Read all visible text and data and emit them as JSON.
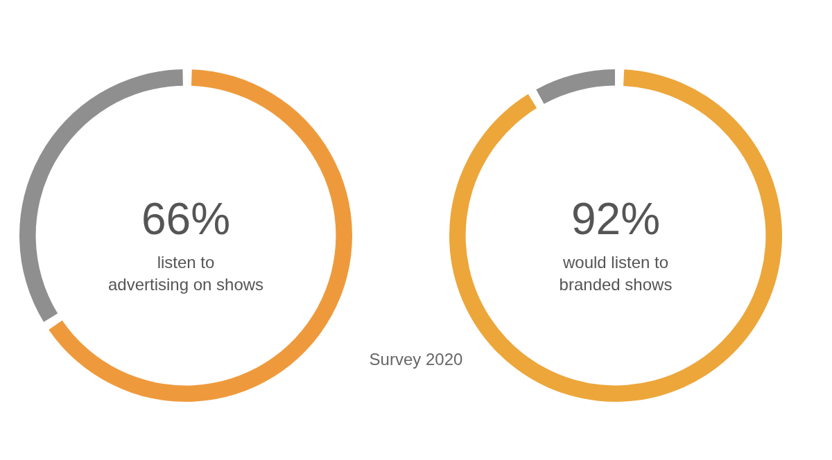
{
  "chart_data": [
    {
      "type": "donut",
      "categories": [
        null,
        null
      ],
      "values": [
        66,
        34
      ],
      "colors": [
        "#ee9a3c",
        "#8f8f8f"
      ],
      "value_labels": [
        "66%",
        null
      ],
      "annotations": [
        "listen to\nadvertising on shows",
        "Survey 2020"
      ]
    },
    {
      "type": "donut",
      "categories": [
        null,
        null
      ],
      "values": [
        92,
        8
      ],
      "colors": [
        "#eca63a",
        "#8f8f8f"
      ],
      "value_labels": [
        "92%",
        null
      ],
      "annotations": [
        "would listen to\nbranded shows"
      ]
    }
  ]
}
